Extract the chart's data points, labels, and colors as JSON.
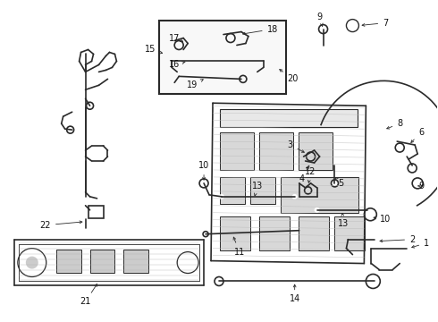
{
  "bg_color": "#ffffff",
  "fig_width": 4.9,
  "fig_height": 3.6,
  "dpi": 100,
  "line_color": "#2a2a2a",
  "label_fontsize": 7.0
}
